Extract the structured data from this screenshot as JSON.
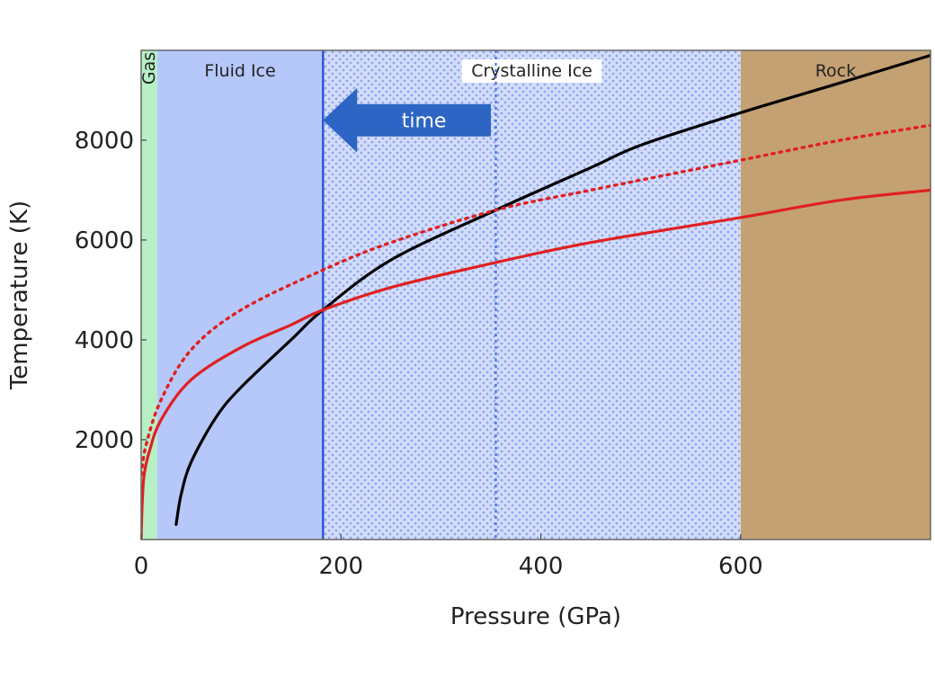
{
  "chart_data": {
    "type": "line",
    "xlabel": "Pressure (GPa)",
    "ylabel": "Temperature (K)",
    "xlim": [
      0,
      790
    ],
    "ylim": [
      0,
      9800
    ],
    "xticks": [
      0,
      200,
      400,
      600
    ],
    "yticks": [
      2000,
      4000,
      6000,
      8000
    ],
    "grid": false,
    "regions": [
      {
        "label": "Gas",
        "x": [
          0,
          16
        ],
        "color": "#b6f0c4",
        "pattern": "none"
      },
      {
        "label": "Fluid Ice",
        "x": [
          16,
          182
        ],
        "color": "#b6c8fa",
        "pattern": "none"
      },
      {
        "label": "Crystalline Ice",
        "x": [
          182,
          600
        ],
        "color": "#d3ddfa",
        "pattern": "dots"
      },
      {
        "label": "Rock",
        "x": [
          600,
          790
        ],
        "color": "#c4a173",
        "pattern": "none"
      }
    ],
    "vlines": [
      {
        "x": 182,
        "style": "solid",
        "color": "#2f57d8"
      },
      {
        "x": 355,
        "style": "dotted",
        "color": "#3f6ff0"
      }
    ],
    "arrow": {
      "label": "time",
      "from_x": 350,
      "to_x": 182,
      "y": 8400,
      "color": "#2d65c4"
    },
    "series": [
      {
        "color": "#000000",
        "style": "solid",
        "points": [
          [
            35,
            300
          ],
          [
            40,
            900
          ],
          [
            50,
            1550
          ],
          [
            75,
            2450
          ],
          [
            100,
            3050
          ],
          [
            150,
            4000
          ],
          [
            182,
            4600
          ],
          [
            250,
            5600
          ],
          [
            355,
            6600
          ],
          [
            450,
            7450
          ],
          [
            500,
            7900
          ],
          [
            600,
            8550
          ],
          [
            700,
            9150
          ],
          [
            790,
            9700
          ]
        ]
      },
      {
        "color": "#e02020",
        "style": "solid",
        "points": [
          [
            0,
            0
          ],
          [
            1,
            700
          ],
          [
            3,
            1300
          ],
          [
            8,
            1750
          ],
          [
            20,
            2400
          ],
          [
            50,
            3200
          ],
          [
            100,
            3850
          ],
          [
            150,
            4300
          ],
          [
            182,
            4600
          ],
          [
            250,
            5050
          ],
          [
            355,
            5550
          ],
          [
            450,
            5950
          ],
          [
            600,
            6450
          ],
          [
            700,
            6800
          ],
          [
            790,
            7000
          ]
        ]
      },
      {
        "color": "#e02020",
        "style": "dotted",
        "points": [
          [
            0,
            1300
          ],
          [
            5,
            1900
          ],
          [
            20,
            2800
          ],
          [
            50,
            3800
          ],
          [
            100,
            4600
          ],
          [
            182,
            5400
          ],
          [
            250,
            5950
          ],
          [
            355,
            6600
          ],
          [
            450,
            7000
          ],
          [
            600,
            7600
          ],
          [
            700,
            8000
          ],
          [
            790,
            8300
          ]
        ]
      }
    ]
  }
}
